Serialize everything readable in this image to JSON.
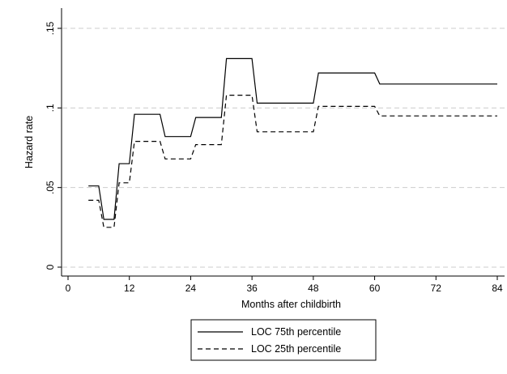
{
  "chart_data": {
    "type": "line",
    "title": "",
    "xlabel": "Months after childbirth",
    "ylabel": "Hazard rate",
    "xlim": [
      0,
      84
    ],
    "ylim": [
      0,
      0.15
    ],
    "x_ticks": [
      0,
      12,
      24,
      36,
      48,
      60,
      72,
      84
    ],
    "x_tick_labels": [
      "0",
      "12",
      "24",
      "36",
      "48",
      "60",
      "72",
      "84"
    ],
    "y_ticks": [
      0,
      0.05,
      0.1,
      0.15
    ],
    "y_tick_labels": [
      "0",
      ".05",
      ".1",
      ".15"
    ],
    "grid": "horizontal dashed",
    "legend_position": "bottom",
    "series": [
      {
        "name": "LOC 75th percentile",
        "style": "solid",
        "color": "#000000",
        "points": [
          [
            4,
            0.051
          ],
          [
            6,
            0.051
          ],
          [
            7,
            0.03
          ],
          [
            9,
            0.03
          ],
          [
            10,
            0.065
          ],
          [
            12,
            0.065
          ],
          [
            13,
            0.096
          ],
          [
            18,
            0.096
          ],
          [
            19,
            0.082
          ],
          [
            24,
            0.082
          ],
          [
            25,
            0.094
          ],
          [
            30,
            0.094
          ],
          [
            31,
            0.131
          ],
          [
            36,
            0.131
          ],
          [
            37,
            0.103
          ],
          [
            48,
            0.103
          ],
          [
            49,
            0.122
          ],
          [
            60,
            0.122
          ],
          [
            61,
            0.115
          ],
          [
            84,
            0.115
          ]
        ]
      },
      {
        "name": "LOC 25th percentile",
        "style": "dashed",
        "color": "#000000",
        "points": [
          [
            4,
            0.042
          ],
          [
            6,
            0.042
          ],
          [
            7,
            0.025
          ],
          [
            9,
            0.025
          ],
          [
            10,
            0.053
          ],
          [
            12,
            0.053
          ],
          [
            13,
            0.079
          ],
          [
            18,
            0.079
          ],
          [
            19,
            0.068
          ],
          [
            24,
            0.068
          ],
          [
            25,
            0.077
          ],
          [
            30,
            0.077
          ],
          [
            31,
            0.108
          ],
          [
            36,
            0.108
          ],
          [
            37,
            0.085
          ],
          [
            48,
            0.085
          ],
          [
            49,
            0.101
          ],
          [
            60,
            0.101
          ],
          [
            61,
            0.095
          ],
          [
            84,
            0.095
          ]
        ]
      }
    ]
  }
}
